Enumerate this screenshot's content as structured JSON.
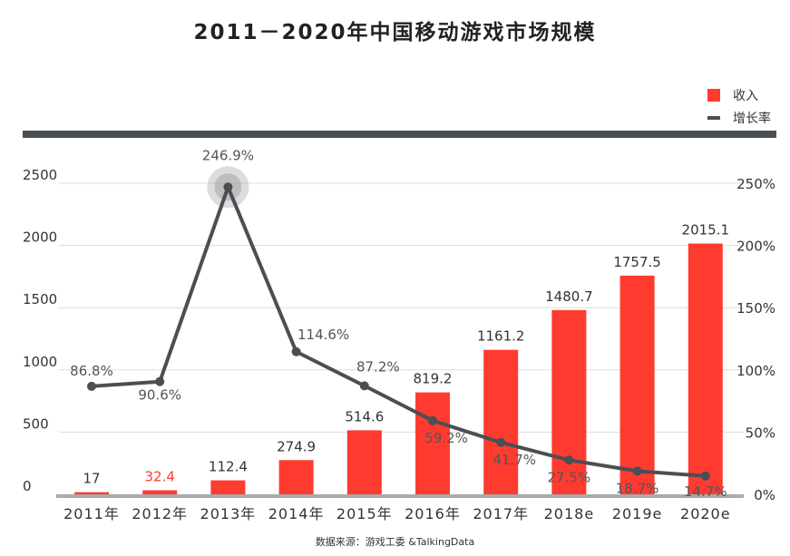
{
  "title": "2011－2020年中国移动游戏市场规模",
  "legend": {
    "bar_label": "收入",
    "line_label": "增长率"
  },
  "source": "数据来源：游戏工委 &TalkingData",
  "colors": {
    "bar": "#ff3b30",
    "line": "#4a4f54",
    "header_bar": "#4a4f54",
    "axis": "#aaaaaa"
  },
  "chart_data": {
    "type": "bar",
    "categories": [
      "2011年",
      "2012年",
      "2013年",
      "2014年",
      "2015年",
      "2016年",
      "2017年",
      "2018e",
      "2019e",
      "2020e"
    ],
    "series": [
      {
        "name": "收入",
        "type": "bar",
        "axis": "left",
        "values": [
          17,
          32.4,
          112.4,
          274.9,
          514.6,
          819.2,
          1161.2,
          1480.7,
          1757.5,
          2015.1
        ],
        "labels": [
          "17",
          "32.4",
          "112.4",
          "274.9",
          "514.6",
          "819.2",
          "1161.2",
          "1480.7",
          "1757.5",
          "2015.1"
        ]
      },
      {
        "name": "增长率",
        "type": "line",
        "axis": "right",
        "values": [
          86.8,
          90.6,
          246.9,
          114.6,
          87.2,
          59.2,
          41.7,
          27.5,
          18.7,
          14.7
        ],
        "labels": [
          "86.8%",
          "90.6%",
          "246.9%",
          "114.6%",
          "87.2%",
          "59.2%",
          "41.7%",
          "27.5%",
          "18.7%",
          "14.7%"
        ]
      }
    ],
    "y_left": {
      "ylim": [
        0,
        2500
      ],
      "ticks": [
        "0",
        "500",
        "1000",
        "1500",
        "2000",
        "2500"
      ]
    },
    "y_right": {
      "ylim": [
        0,
        250
      ],
      "ticks": [
        "0%",
        "50%",
        "100%",
        "150%",
        "200%",
        "250%"
      ]
    },
    "grid": true,
    "legend_position": "top-right",
    "highlight": "2013年"
  }
}
